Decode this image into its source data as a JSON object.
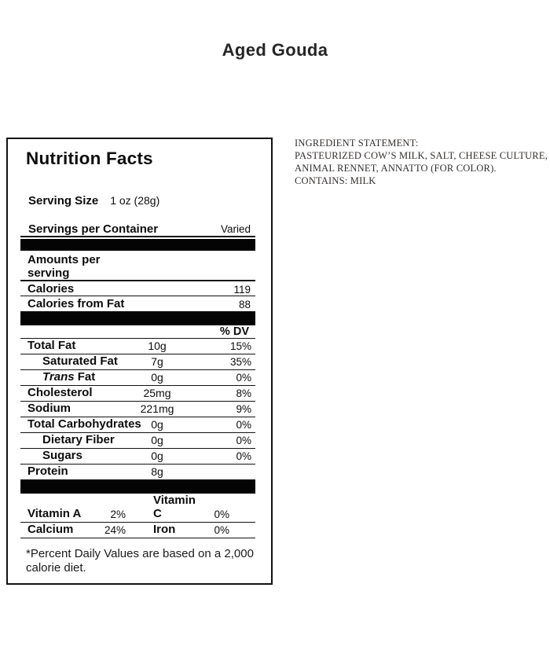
{
  "page": {
    "title": "Aged Gouda"
  },
  "colors": {
    "text": "#0d0d0d",
    "bar": "#040404",
    "panel_border": "#121212",
    "background": "#ffffff"
  },
  "nutrition": {
    "title": "Nutrition Facts",
    "serving_size": {
      "label": "Serving Size",
      "value": "1 oz (28g)"
    },
    "servings_per_container": {
      "label": "Servings per Container",
      "value": "Varied"
    },
    "amounts_per_serving": "Amounts per\nserving",
    "calories": {
      "label": "Calories",
      "value": "119"
    },
    "calories_from_fat": {
      "label": "Calories from Fat",
      "value": "88"
    },
    "dv_header": "% DV",
    "rows": [
      {
        "label": "Total Fat",
        "amount": "10g",
        "dv": "15%"
      },
      {
        "label": "Saturated Fat",
        "amount": "7g",
        "dv": "35%"
      },
      {
        "label": "Trans Fat",
        "label_italic": "Trans",
        "label_rest": " Fat",
        "amount": "0g",
        "dv": "0%"
      },
      {
        "label": "Cholesterol",
        "amount": "25mg",
        "dv": "8%"
      },
      {
        "label": "Sodium",
        "amount": "221mg",
        "dv": "9%"
      },
      {
        "label": "Total Carbohydrates",
        "amount": "0g",
        "dv": "0%"
      },
      {
        "label": "Dietary Fiber",
        "amount": "0g",
        "dv": "0%"
      },
      {
        "label": "Sugars",
        "amount": "0g",
        "dv": "0%"
      },
      {
        "label": "Protein",
        "amount": "8g",
        "dv": ""
      }
    ],
    "vitamins": {
      "rows": [
        {
          "label1": "Vitamin A",
          "val1": "2%",
          "label2": "Vitamin C",
          "val2": "0%"
        },
        {
          "label1": "Calcium",
          "val1": "24%",
          "label2": "Iron",
          "val2": "0%"
        }
      ]
    },
    "footnote": "*Percent Daily Values are based on a 2,000\ncalorie diet."
  },
  "ingredients": {
    "text": "INGREDIENT STATEMENT:\nPASTEURIZED COW’S MILK, SALT, CHEESE CULTURE,\nANIMAL RENNET, ANNATTO (FOR COLOR).\nCONTAINS: MILK"
  }
}
